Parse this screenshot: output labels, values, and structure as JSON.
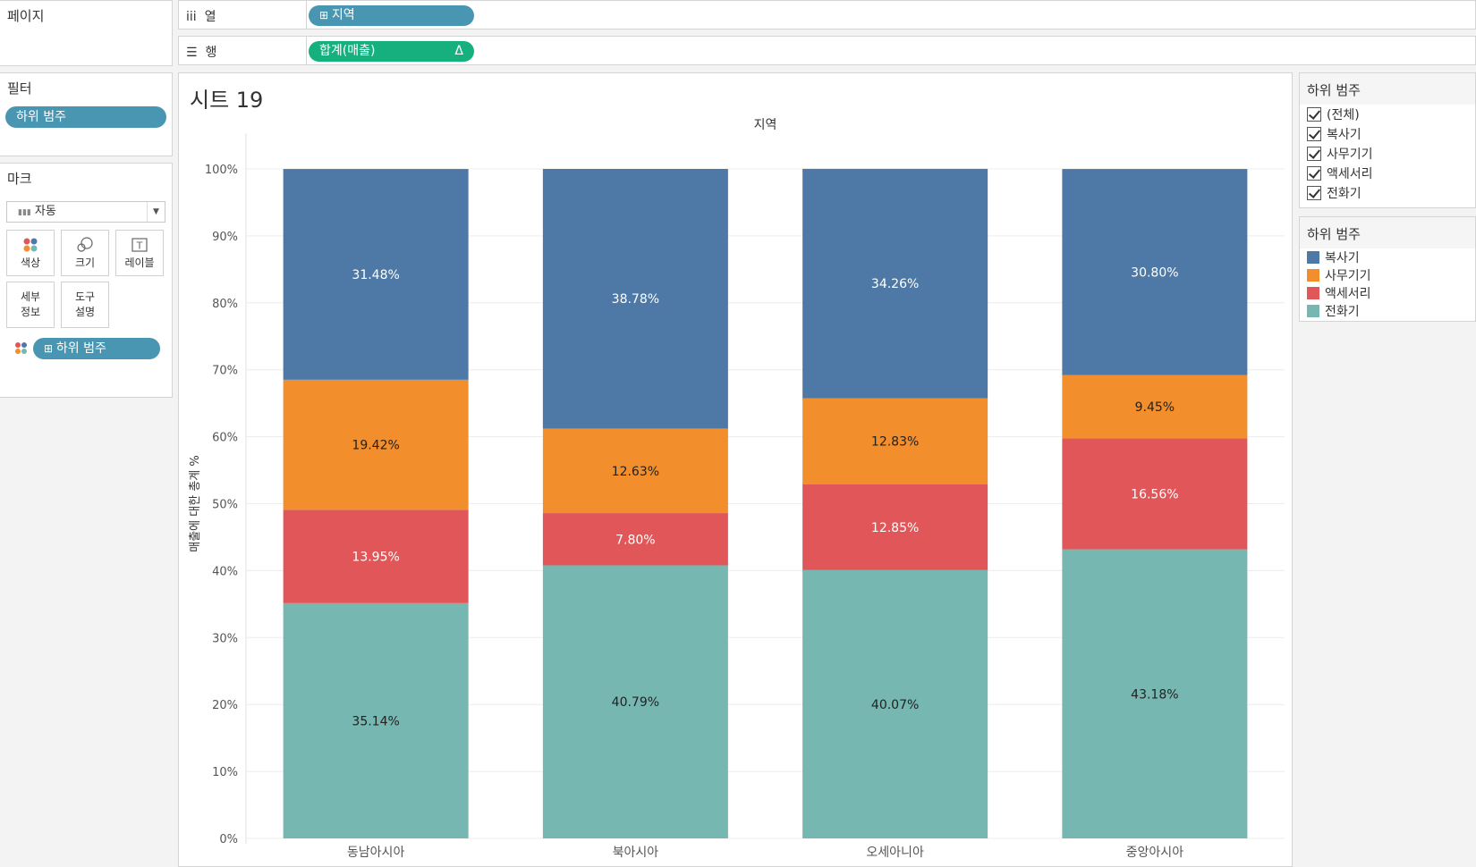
{
  "left": {
    "pages_title": "페이지",
    "filters_title": "필터",
    "filter_pill": "하위 범주",
    "marks_title": "마크",
    "mark_type": "자동",
    "buttons": {
      "color": "색상",
      "size": "크기",
      "label": "레이블",
      "detail_1": "세부",
      "detail_2": "정보",
      "tooltip_1": "도구",
      "tooltip_2": "설명"
    },
    "color_pill": "하위 범주"
  },
  "shelves": {
    "columns_label": "열",
    "columns_pill": "지역",
    "rows_label": "행",
    "rows_pill": "합계(매출)",
    "rows_delta": "Δ"
  },
  "sheet": {
    "title": "시트 19"
  },
  "filter_legend": {
    "title": "하위 범주",
    "items": [
      "(전체)",
      "복사기",
      "사무기기",
      "액세서리",
      "전화기"
    ]
  },
  "color_legend": {
    "title": "하위 범주",
    "items": [
      "복사기",
      "사무기기",
      "액세서리",
      "전화기"
    ],
    "colors": [
      "#4e79a7",
      "#f28e2b",
      "#e15759",
      "#76b7b2"
    ]
  },
  "chart_data": {
    "type": "bar",
    "stacked": true,
    "title": "지역",
    "xlabel": "",
    "ylabel": "매출에 대한 총계 %",
    "ylim": [
      0,
      100
    ],
    "yticks": [
      "0%",
      "10%",
      "20%",
      "30%",
      "40%",
      "50%",
      "60%",
      "70%",
      "80%",
      "90%",
      "100%"
    ],
    "categories": [
      "동남아시아",
      "북아시아",
      "오세아니아",
      "중앙아시아"
    ],
    "series": [
      {
        "name": "전화기",
        "color": "#76b7b2",
        "values": [
          35.14,
          40.79,
          40.07,
          43.18
        ],
        "labels": [
          "35.14%",
          "40.79%",
          "40.07%",
          "43.18%"
        ],
        "text_color": "#222222"
      },
      {
        "name": "액세서리",
        "color": "#e15759",
        "values": [
          13.95,
          7.8,
          12.85,
          16.56
        ],
        "labels": [
          "13.95%",
          "7.80%",
          "12.85%",
          "16.56%"
        ],
        "text_color": "#ffffff"
      },
      {
        "name": "사무기기",
        "color": "#f28e2b",
        "values": [
          19.42,
          12.63,
          12.83,
          9.45
        ],
        "labels": [
          "19.42%",
          "12.63%",
          "12.83%",
          "9.45%"
        ],
        "text_color": "#222222"
      },
      {
        "name": "복사기",
        "color": "#4e79a7",
        "values": [
          31.48,
          38.78,
          34.26,
          30.8
        ],
        "labels": [
          "31.48%",
          "38.78%",
          "34.26%",
          "30.80%"
        ],
        "text_color": "#ffffff"
      }
    ]
  }
}
